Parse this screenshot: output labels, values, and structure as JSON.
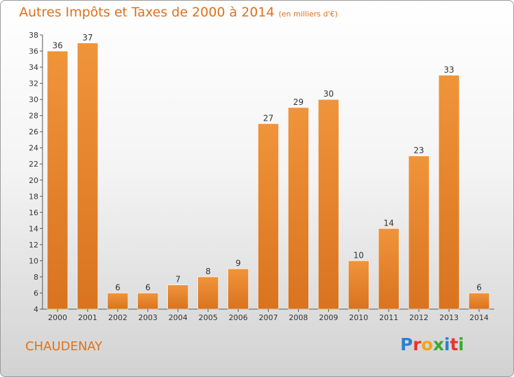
{
  "chart_data": {
    "type": "bar",
    "title": "Autres Impôts et Taxes de 2000 à 2014",
    "subtitle": "(en milliers d'€)",
    "categories": [
      "2000",
      "2001",
      "2002",
      "2003",
      "2004",
      "2005",
      "2006",
      "2007",
      "2008",
      "2009",
      "2010",
      "2011",
      "2012",
      "2013",
      "2014"
    ],
    "values": [
      36,
      37,
      6,
      6,
      7,
      8,
      9,
      27,
      29,
      30,
      10,
      14,
      23,
      33,
      6
    ],
    "ylim": [
      4,
      38
    ],
    "yticks": [
      4,
      6,
      8,
      10,
      12,
      14,
      16,
      18,
      20,
      22,
      24,
      26,
      28,
      30,
      32,
      34,
      36,
      38
    ],
    "grid": false,
    "bar_color": "#f0943a",
    "bar_color_dark": "#d9731f"
  },
  "footer": {
    "commune": "CHAUDENAY",
    "logo": {
      "letters": [
        "P",
        "r",
        "o",
        "x",
        "i",
        "t",
        "i"
      ],
      "colors": [
        "#2f7fd0",
        "#e8342a",
        "#f2a31a",
        "#3aa935",
        "#2f7fd0",
        "#e8342a",
        "#3aa935"
      ]
    }
  },
  "colors": {
    "accent": "#e0701a"
  }
}
